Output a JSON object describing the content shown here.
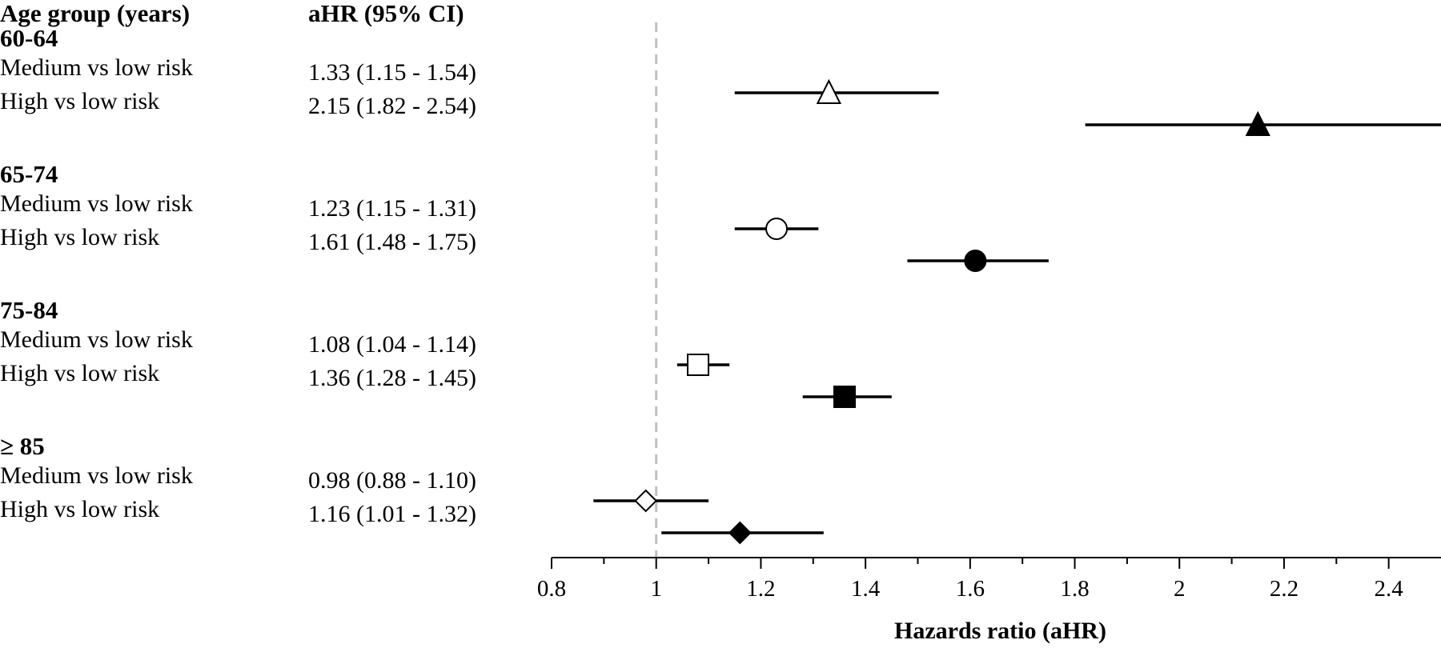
{
  "headers": {
    "group": "Age group (years)",
    "estimate": "aHR (95% CI)"
  },
  "chart_data": {
    "type": "forest",
    "xlabel": "Hazards ratio (aHR)",
    "xlim": [
      0.8,
      2.5
    ],
    "ticks": [
      0.8,
      1.0,
      1.2,
      1.4,
      1.6,
      1.8,
      2.0,
      2.2,
      2.4
    ],
    "tick_labels": [
      "0.8",
      "1",
      "1.2",
      "1.4",
      "1.6",
      "1.8",
      "2",
      "2.2",
      "2.4"
    ],
    "reference_line": 1.0,
    "groups": [
      {
        "label": "60-64",
        "rows": [
          {
            "label": "Medium  vs low risk",
            "text": "1.33 (1.15 - 1.54)",
            "est": 1.33,
            "lo": 1.15,
            "hi": 1.54,
            "marker": "triangle-open"
          },
          {
            "label": "High  vs low risk",
            "text": "2.15 (1.82 - 2.54)",
            "est": 2.15,
            "lo": 1.82,
            "hi": 2.54,
            "marker": "triangle-filled"
          }
        ]
      },
      {
        "label": "65-74",
        "rows": [
          {
            "label": "Medium  vs low risk",
            "text": "1.23 (1.15 - 1.31)",
            "est": 1.23,
            "lo": 1.15,
            "hi": 1.31,
            "marker": "circle-open"
          },
          {
            "label": "High  vs low risk",
            "text": "1.61 (1.48 - 1.75)",
            "est": 1.61,
            "lo": 1.48,
            "hi": 1.75,
            "marker": "circle-filled"
          }
        ]
      },
      {
        "label": "75-84",
        "rows": [
          {
            "label": "Medium  vs low risk",
            "text": "1.08 (1.04 - 1.14)",
            "est": 1.08,
            "lo": 1.04,
            "hi": 1.14,
            "marker": "square-open"
          },
          {
            "label": "High  vs low risk",
            "text": "1.36 (1.28 - 1.45)",
            "est": 1.36,
            "lo": 1.28,
            "hi": 1.45,
            "marker": "square-filled"
          }
        ]
      },
      {
        "label": "≥ 85",
        "rows": [
          {
            "label": "Medium  vs low risk",
            "text": "0.98 (0.88 - 1.10)",
            "est": 0.98,
            "lo": 0.88,
            "hi": 1.1,
            "marker": "diamond-open"
          },
          {
            "label": "High  vs low risk",
            "text": "1.16 (1.01 - 1.32)",
            "est": 1.16,
            "lo": 1.01,
            "hi": 1.32,
            "marker": "diamond-filled"
          }
        ]
      }
    ]
  }
}
